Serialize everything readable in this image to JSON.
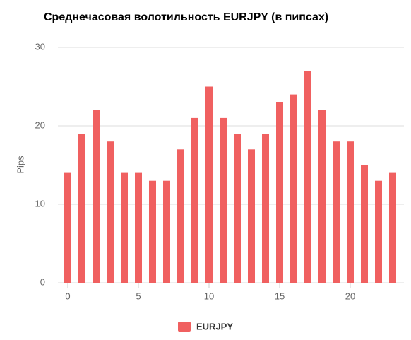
{
  "chart_data": {
    "type": "bar",
    "title": "Среднечасовая волотильность EURJPY (в пипсах)",
    "y_label": "Pips",
    "x": [
      0,
      1,
      2,
      3,
      4,
      5,
      6,
      7,
      8,
      9,
      10,
      11,
      12,
      13,
      14,
      15,
      16,
      17,
      18,
      19,
      20,
      21,
      22,
      23
    ],
    "series": [
      {
        "name": "EURJPY",
        "color": "#f06060",
        "values": [
          14,
          19,
          22,
          18,
          14,
          14,
          13,
          13,
          17,
          21,
          25,
          21,
          19,
          17,
          19,
          23,
          24,
          27,
          22,
          18,
          18,
          15,
          13,
          14
        ]
      }
    ],
    "xlim": [
      -0.7,
      23.8
    ],
    "xticks": [
      0,
      5,
      10,
      15,
      20
    ],
    "ylim": [
      0,
      30
    ],
    "yticks": [
      0,
      10,
      20,
      30
    ],
    "grid": true,
    "legend": "bottom"
  }
}
